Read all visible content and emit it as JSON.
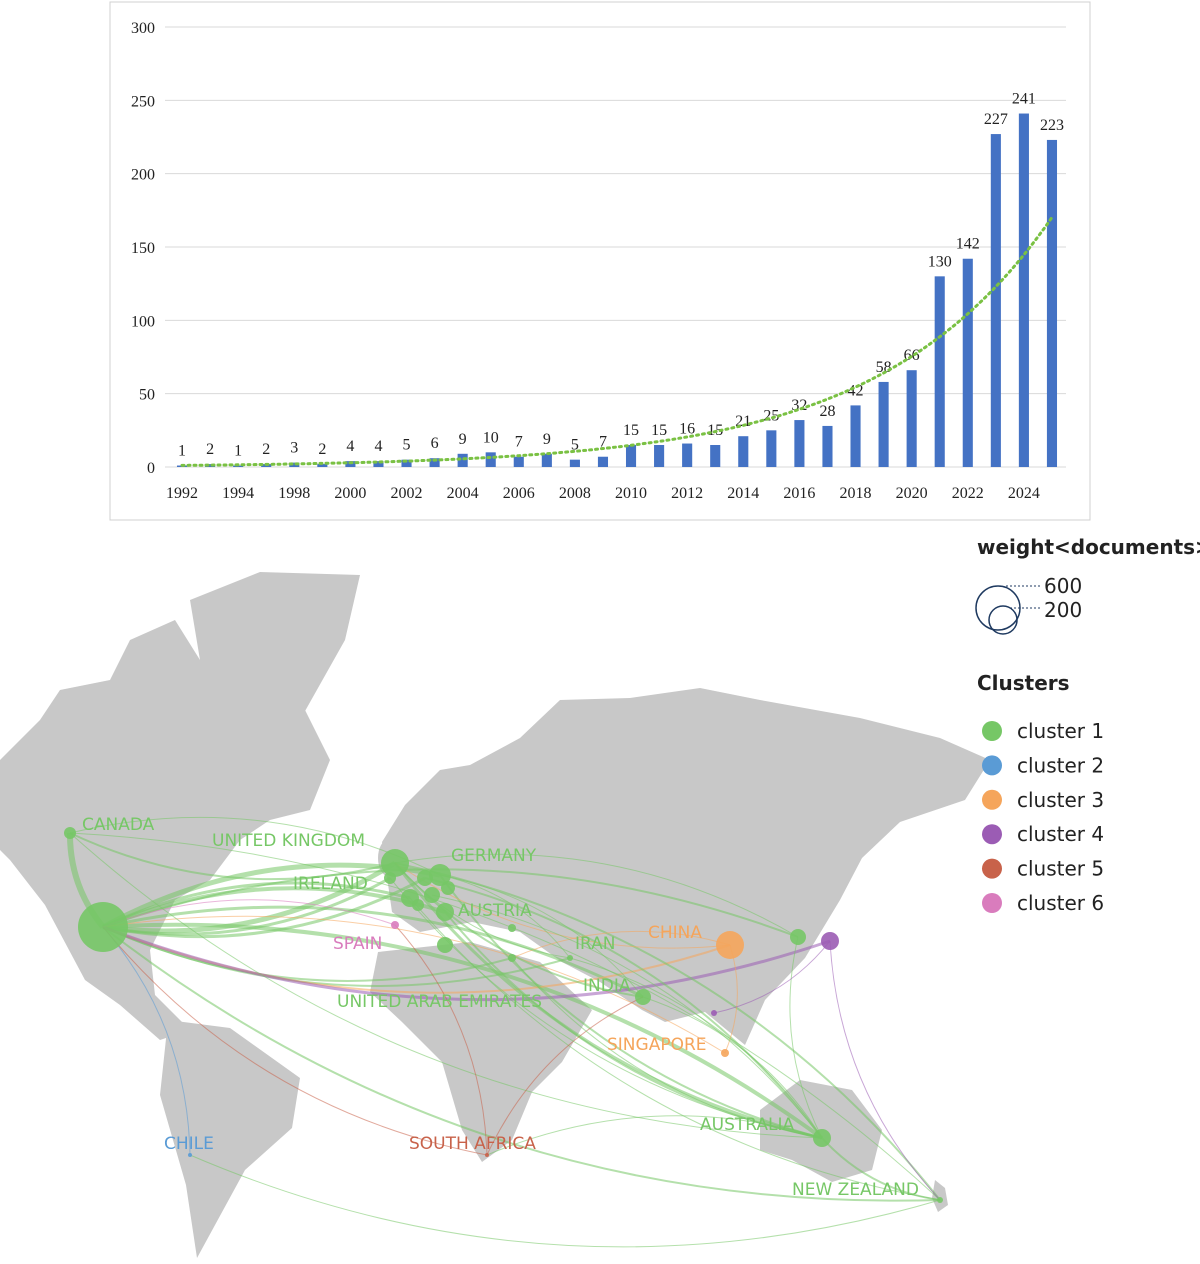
{
  "chart_data": {
    "type": "bar",
    "categories": [
      "1992",
      null,
      "1994",
      null,
      "1998",
      null,
      "2000",
      null,
      "2002",
      null,
      "2004",
      null,
      "2006",
      null,
      "2008",
      null,
      "2010",
      null,
      "2012",
      null,
      "2014",
      null,
      "2016",
      null,
      "2018",
      null,
      "2020",
      null,
      "2022",
      null,
      "2024",
      null
    ],
    "values": [
      1,
      2,
      1,
      2,
      3,
      2,
      4,
      4,
      5,
      6,
      9,
      10,
      7,
      9,
      5,
      7,
      15,
      15,
      16,
      15,
      21,
      25,
      32,
      28,
      42,
      58,
      66,
      130,
      142,
      227,
      241,
      223
    ],
    "color": "#4472c4",
    "ylim": [
      0,
      300
    ],
    "yticks": [
      0,
      50,
      100,
      150,
      200,
      250,
      300
    ],
    "grid": true,
    "trendline": "exponential",
    "trendline_color": "#7ac143"
  },
  "map": {
    "legend": {
      "size_title": "weight<documents>",
      "sizes": [
        600,
        200
      ],
      "cluster_title": "Clusters",
      "clusters": [
        "cluster 1",
        "cluster 2",
        "cluster 3",
        "cluster 4",
        "cluster 5",
        "cluster 6"
      ],
      "colors": [
        "#76c766",
        "#5a9bd5",
        "#f5a55b",
        "#9b5cb4",
        "#c8624a",
        "#d97cbd"
      ]
    },
    "nodes": [
      {
        "label": "CANADA",
        "cluster": 0
      },
      {
        "label": "UNITED KINGDOM",
        "cluster": 0
      },
      {
        "label": "GERMANY",
        "cluster": 0
      },
      {
        "label": "IRELAND",
        "cluster": 0
      },
      {
        "label": "AUSTRIA",
        "cluster": 0
      },
      {
        "label": "SPAIN",
        "cluster": 5
      },
      {
        "label": "IRAN",
        "cluster": 0
      },
      {
        "label": "CHINA",
        "cluster": 2
      },
      {
        "label": "INDIA",
        "cluster": 0
      },
      {
        "label": "UNITED ARAB EMIRATES",
        "cluster": 0
      },
      {
        "label": "SINGAPORE",
        "cluster": 2
      },
      {
        "label": "CHILE",
        "cluster": 1
      },
      {
        "label": "SOUTH AFRICA",
        "cluster": 4
      },
      {
        "label": "AUSTRALIA",
        "cluster": 0
      },
      {
        "label": "NEW ZEALAND",
        "cluster": 0
      }
    ]
  }
}
